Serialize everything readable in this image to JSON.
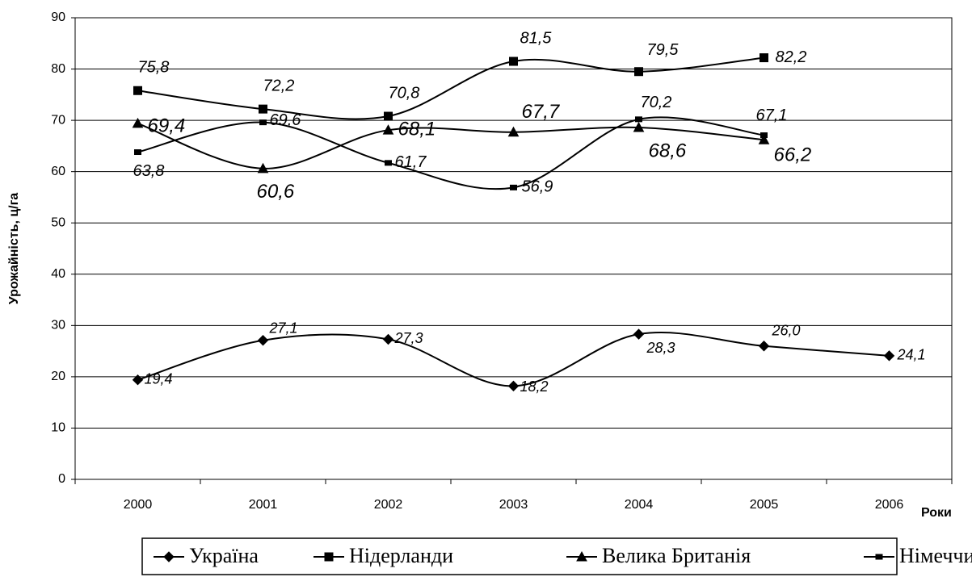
{
  "chart_data": {
    "type": "line",
    "y_label": "Урожайність, ц/га",
    "x_label": "Роки",
    "categories": [
      "2000",
      "2001",
      "2002",
      "2003",
      "2004",
      "2005",
      "2006"
    ],
    "ylim": [
      0,
      90
    ],
    "yticks": [
      0,
      10,
      20,
      30,
      40,
      50,
      60,
      70,
      80,
      90
    ],
    "grid": true,
    "smooth": true,
    "legend": "bottom",
    "series": [
      {
        "name": "Україна",
        "color": "#000000",
        "marker": "diamond",
        "values": [
          19.4,
          27.1,
          27.3,
          18.2,
          28.3,
          26.0,
          24.1
        ],
        "value_labels": [
          "19,4",
          "27,1",
          "27,3",
          "18,2",
          "28,3",
          "26,0",
          "24,1"
        ]
      },
      {
        "name": "Нідерланди",
        "color": "#000000",
        "marker": "square",
        "values": [
          75.8,
          72.2,
          70.8,
          81.5,
          79.5,
          82.2,
          null
        ],
        "value_labels": [
          "75,8",
          "72,2",
          "70,8",
          "81,5",
          "79,5",
          "82,2",
          null
        ]
      },
      {
        "name": "Велика Британія",
        "color": "#000000",
        "marker": "triangle",
        "values": [
          69.4,
          60.6,
          68.1,
          67.7,
          68.6,
          66.2,
          null
        ],
        "value_labels": [
          "69,4",
          "60,6",
          "68,1",
          "67,7",
          "68,6",
          "66,2",
          null
        ]
      },
      {
        "name": "Німеччина",
        "color": "#000000",
        "marker": "dash",
        "values": [
          63.8,
          69.6,
          61.7,
          56.9,
          70.2,
          67.1,
          null
        ],
        "value_labels": [
          "63,8",
          "69,6",
          "61,7",
          "56,9",
          "70,2",
          "67,1",
          null
        ]
      }
    ]
  }
}
